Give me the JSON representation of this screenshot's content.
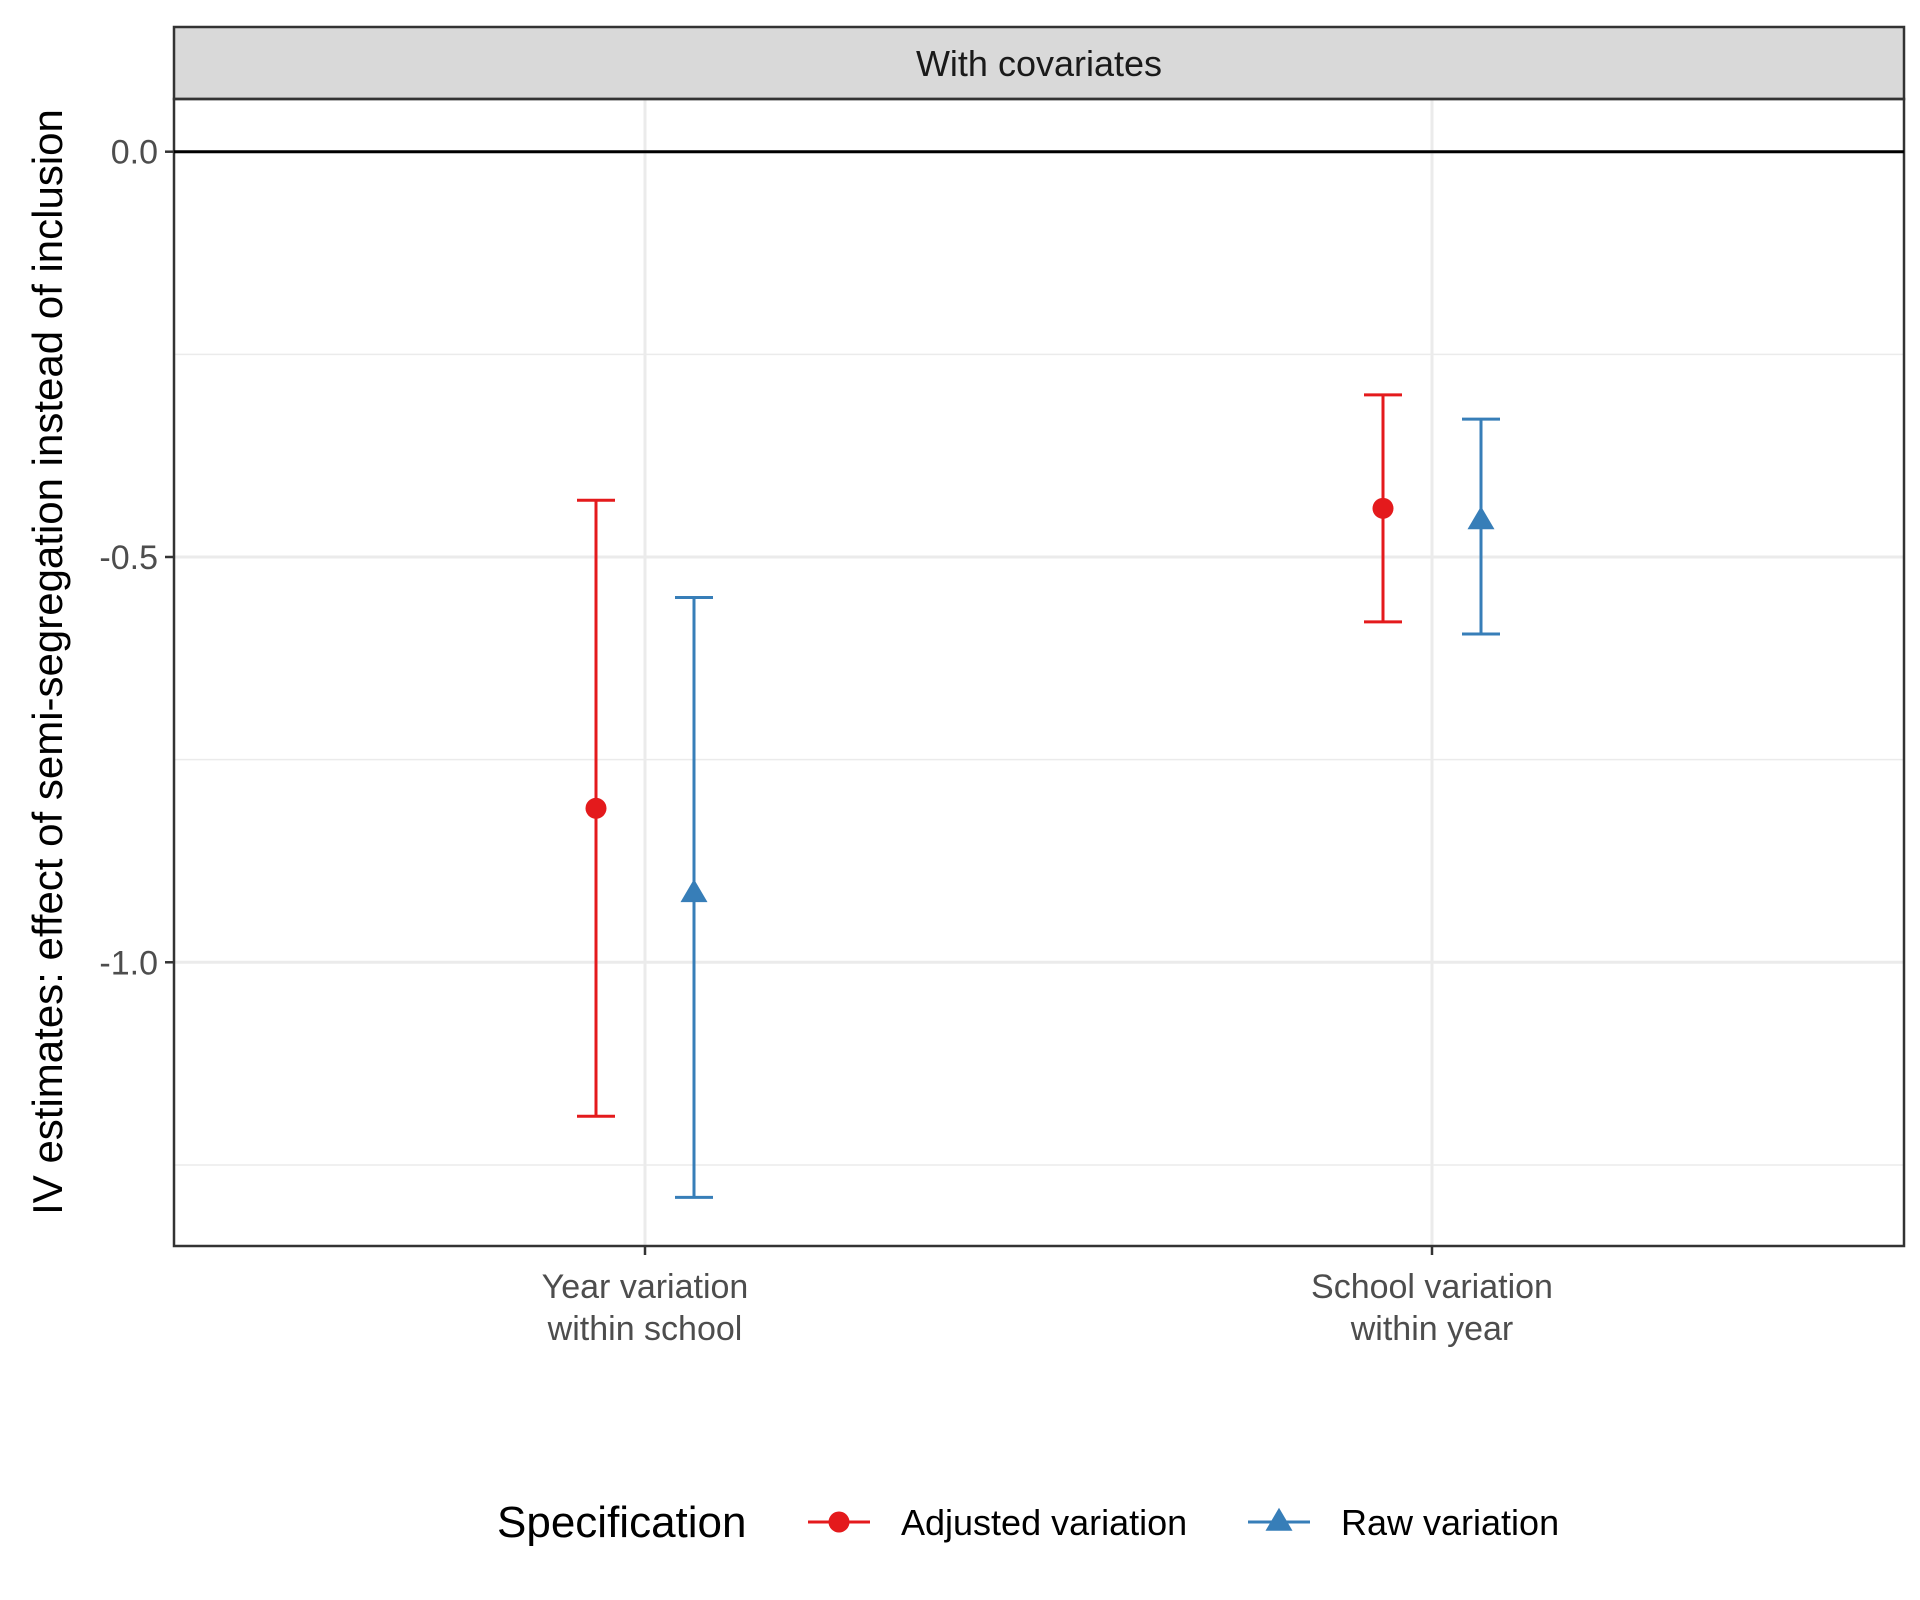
{
  "chart_data": {
    "type": "errorbar",
    "facet_label": "With covariates",
    "ylabel": "IV estimates: effect of semi-segregation instead of inclusion",
    "xlabel": "",
    "ylim": [
      -1.35,
      0.065
    ],
    "yticks": [
      0.0,
      -0.5,
      -1.0
    ],
    "ytick_labels": [
      "0.0",
      "-0.5",
      "-1.0"
    ],
    "reference_line": 0.0,
    "categories": [
      {
        "line1": "Year variation",
        "line2": "within school"
      },
      {
        "line1": "School variation",
        "line2": "within year"
      }
    ],
    "legend": {
      "title": "Specification",
      "position": "bottom"
    },
    "series": [
      {
        "name": "Adjusted variation",
        "color": "#E41A1C",
        "marker": "circle",
        "points": [
          {
            "category": 0,
            "estimate": -0.81,
            "lower": -1.19,
            "upper": -0.43
          },
          {
            "category": 1,
            "estimate": -0.44,
            "lower": -0.58,
            "upper": -0.3
          }
        ]
      },
      {
        "name": "Raw variation",
        "color": "#377EB8",
        "marker": "triangle",
        "points": [
          {
            "category": 0,
            "estimate": -0.915,
            "lower": -1.29,
            "upper": -0.55
          },
          {
            "category": 1,
            "estimate": -0.455,
            "lower": -0.595,
            "upper": -0.33
          }
        ]
      }
    ]
  }
}
